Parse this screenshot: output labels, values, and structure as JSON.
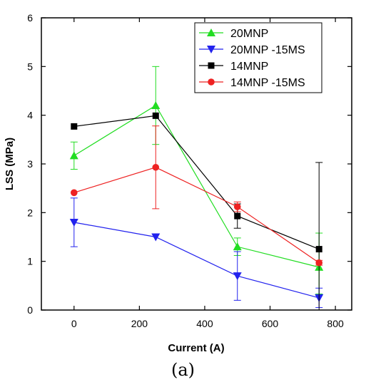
{
  "chart_data": {
    "type": "line",
    "xlabel": "Current (A)",
    "ylabel": "LSS (MPa)",
    "xlim": [
      -100,
      850
    ],
    "ylim": [
      0,
      6
    ],
    "xticks": [
      0,
      200,
      400,
      600,
      800
    ],
    "yticks": [
      0,
      1,
      2,
      3,
      4,
      5,
      6
    ],
    "grid": false,
    "legend_position": "top-right",
    "series": [
      {
        "name": "20MNP",
        "color": "#22dd22",
        "marker": "triangle-up",
        "x": [
          0,
          250,
          500,
          750
        ],
        "y": [
          3.17,
          4.2,
          1.3,
          0.88
        ],
        "err_low": [
          0.28,
          0.8,
          0.18,
          0.55
        ],
        "err_high": [
          0.28,
          0.8,
          0.18,
          0.7
        ]
      },
      {
        "name": "20MNP -15MS",
        "color": "#2222ee",
        "marker": "triangle-down",
        "x": [
          0,
          250,
          500,
          750
        ],
        "y": [
          1.8,
          1.5,
          0.7,
          0.25
        ],
        "err_low": [
          0.5,
          0,
          0.5,
          0.2
        ],
        "err_high": [
          0.5,
          0,
          0.5,
          0.2
        ]
      },
      {
        "name": "14MNP",
        "color": "#000000",
        "marker": "square",
        "x": [
          0,
          250,
          500,
          750
        ],
        "y": [
          3.77,
          3.99,
          1.93,
          1.25
        ],
        "err_low": [
          0,
          0,
          0.25,
          1.25
        ],
        "err_high": [
          0,
          0,
          0.25,
          1.78
        ]
      },
      {
        "name": "14MNP -15MS",
        "color": "#ee2222",
        "marker": "circle",
        "x": [
          0,
          250,
          500,
          750
        ],
        "y": [
          2.41,
          2.93,
          2.12,
          0.97
        ],
        "err_low": [
          0,
          0.85,
          0.1,
          0.05
        ],
        "err_high": [
          0,
          0.85,
          0.1,
          0.05
        ]
      }
    ]
  },
  "caption": "(a)"
}
